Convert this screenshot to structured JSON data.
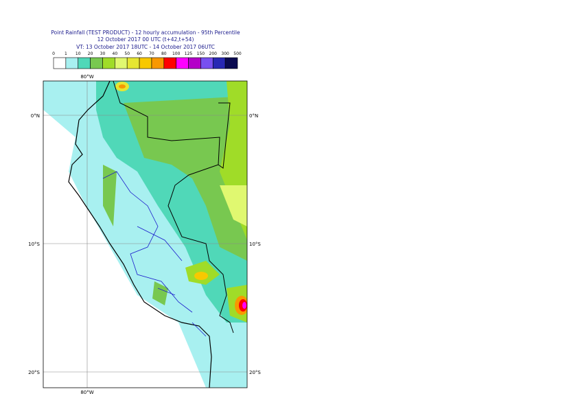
{
  "header": {
    "lines": [
      "Point Rainfall (TEST PRODUCT) - 12 hourly accumulation - 95th Percentile",
      "12 October 2017 00 UTC (t+42,t+54)",
      "VT: 13 October 2017 18UTC - 14 October 2017 06UTC"
    ]
  },
  "colorbar": {
    "labels": [
      0,
      1,
      10,
      20,
      30,
      40,
      50,
      60,
      70,
      80,
      100,
      125,
      150,
      200,
      300,
      500
    ],
    "colors": [
      "#ffffff",
      "#a8f0f0",
      "#50d8b8",
      "#78c850",
      "#a0dc28",
      "#e0f870",
      "#e6e632",
      "#f8c800",
      "#f89800",
      "#ff0000",
      "#ff00ff",
      "#b400c8",
      "#7850f0",
      "#2828b4",
      "#0a0a50"
    ]
  },
  "map": {
    "lat_labels": [
      "0°N",
      "10°S",
      "20°S"
    ],
    "lon_labels": [
      "80°W",
      "80°W"
    ]
  }
}
